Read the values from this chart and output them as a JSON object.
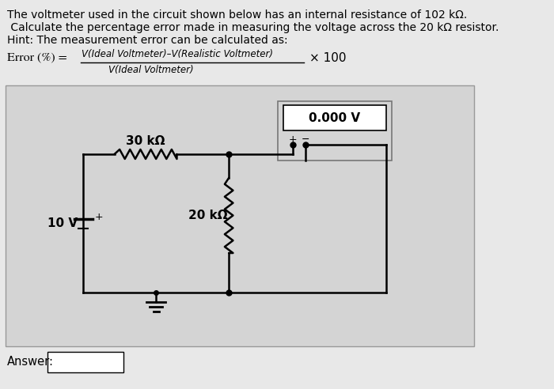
{
  "bg_color": "#e8e8e8",
  "white": "#ffffff",
  "black": "#000000",
  "title_line1": "The voltmeter used in the circuit shown below has an internal resistance of 102 kΩ.",
  "title_line2": " Calculate the percentage error made in measuring the voltage across the 20 kΩ resistor.",
  "title_line3": "Hint: The measurement error can be calculated as:",
  "formula_left": "Error (%) =",
  "formula_num": "V(Ideal Voltmeter)–V(Realistic Voltmeter)",
  "formula_den": "V(Ideal Voltmeter)",
  "formula_right": "× 100",
  "voltmeter_label": "0.000 V",
  "r1_label": "30 kΩ",
  "r2_label": "20 kΩ",
  "v_label": "10 V",
  "answer_label": "Answer:",
  "circuit_bg": "#d4d4d4",
  "circuit_border": "#999999",
  "voltmeter_outer_color": "#888888",
  "voltmeter_inner_color": "#ffffff"
}
